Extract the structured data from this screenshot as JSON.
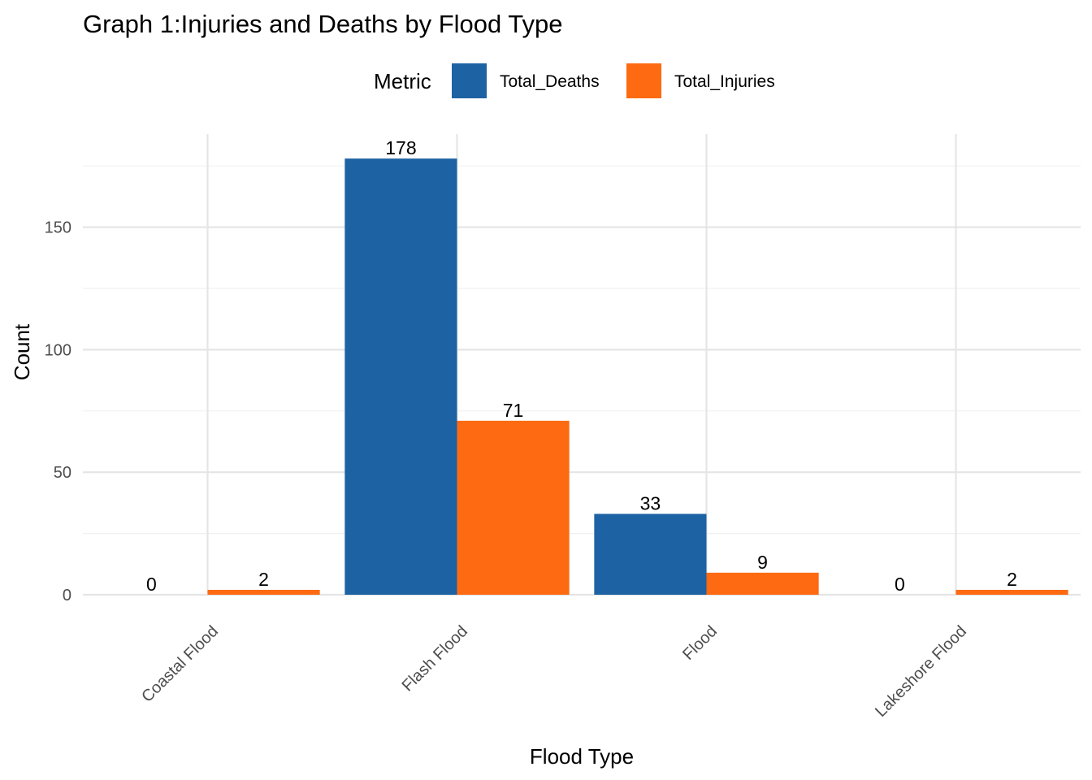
{
  "chart_data": {
    "type": "bar",
    "title": "Graph 1:Injuries and Deaths by Flood Type",
    "xlabel": "Flood Type",
    "ylabel": "Count",
    "legend_title": "Metric",
    "legend_position": "top",
    "categories": [
      "Coastal Flood",
      "Flash Flood",
      "Flood",
      "Lakeshore Flood"
    ],
    "series": [
      {
        "name": "Total_Deaths",
        "color": "#1d62a3",
        "values": [
          0,
          178,
          33,
          0
        ]
      },
      {
        "name": "Total_Injuries",
        "color": "#fd6a11",
        "values": [
          2,
          71,
          9,
          2
        ]
      }
    ],
    "y_ticks": [
      0,
      50,
      100,
      150
    ],
    "ylim": [
      0,
      178
    ],
    "grid": true,
    "data_labels": true,
    "x_tick_rotation": "45 degrees"
  }
}
